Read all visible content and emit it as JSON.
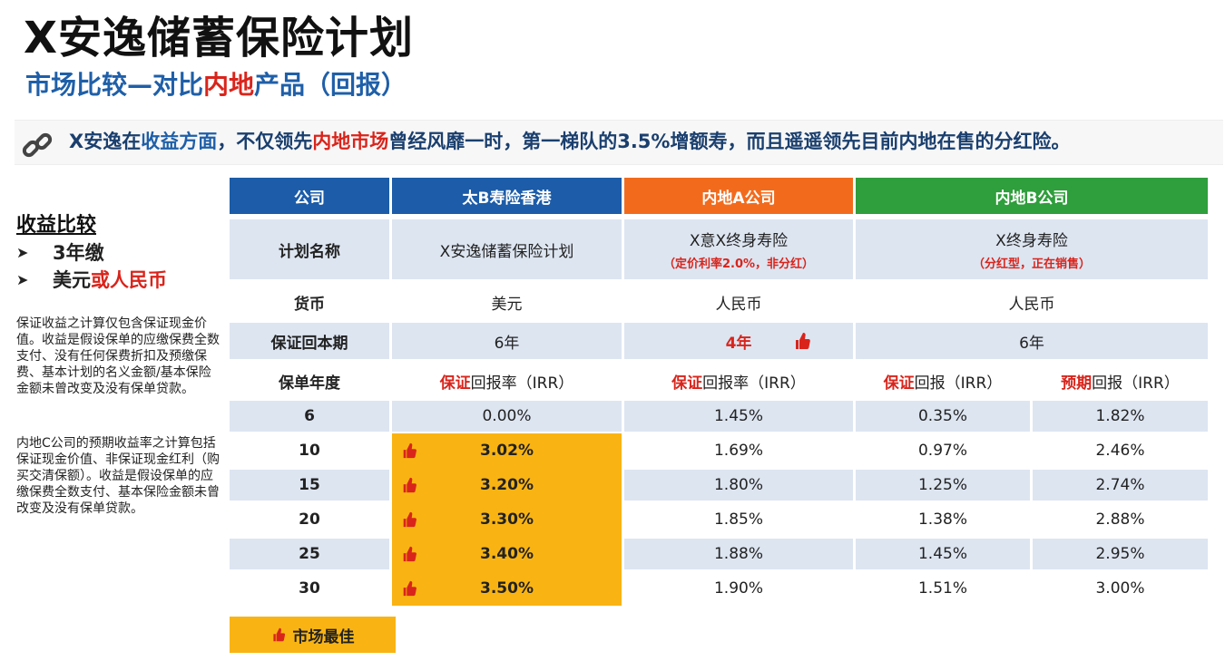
{
  "header": {
    "title": "X安逸储蓄保险计划",
    "subtitle_pre": "市场比较—对比",
    "subtitle_red": "内地",
    "subtitle_post": "产品（回报）"
  },
  "banner": {
    "t1": "X安逸在",
    "t2": "收益方面",
    "t3": "，不仅领先",
    "t4": "内地市场",
    "t5": "曾经风靡一时，第一梯队的3.5%增额寿，而且遥遥领先目前内地在售的分红险。",
    "icon": "link-chain-icon"
  },
  "sidebar": {
    "heading": "收益比较",
    "bullet1": "3年缴",
    "bullet2_pre": "美元",
    "bullet2_red": "或人民币",
    "note1": "保证收益之计算仅包含保证现金价值。收益是假设保单的应缴保费全数支付、没有任何保费折扣及预缴保费、基本计划的名义金额/基本保险金额未曾改变及没有保单贷款。",
    "note2": "内地C公司的预期收益率之计算包括保证现金价值、非保证现金红利（购买交清保额）。收益是假设保单的应缴保费全数支付、基本保险金额未曾改变及没有保单贷款。"
  },
  "table": {
    "headers": {
      "company": "公司",
      "taib": "太B寿险香港",
      "mainland_a": "内地A公司",
      "mainland_b": "内地B公司"
    },
    "colors": {
      "blue": "#1c5ca8",
      "orange": "#f26b1d",
      "green": "#2f9e3c",
      "gold": "#f9b413",
      "red": "#d9241b"
    },
    "plan": {
      "label": "计划名称",
      "taib": "X安逸储蓄保险计划",
      "a_name": "X意X终身寿险",
      "a_note": "（定价利率2.0%，非分红）",
      "b_name": "X终身寿险",
      "b_note": "（分红型，正在销售）"
    },
    "currency": {
      "label": "货币",
      "taib": "美元",
      "a": "人民币",
      "b": "人民币"
    },
    "breakeven": {
      "label": "保证回本期",
      "taib": "6年",
      "a": "4年",
      "b": "6年"
    },
    "year_hdr": {
      "label": "保单年度",
      "taib_red": "保证",
      "taib_rest": "回报率（IRR）",
      "a_red": "保证",
      "a_rest": "回报率（IRR）",
      "b1_red": "保证",
      "b1_rest": "回报（IRR）",
      "b2_red": "预期",
      "b2_rest": "回报（IRR）"
    },
    "rows": [
      {
        "year": "6",
        "taib": "0.00%",
        "a": "1.45%",
        "b_guar": "0.35%",
        "b_exp": "1.82%",
        "best": false
      },
      {
        "year": "10",
        "taib": "3.02%",
        "a": "1.69%",
        "b_guar": "0.97%",
        "b_exp": "2.46%",
        "best": true
      },
      {
        "year": "15",
        "taib": "3.20%",
        "a": "1.80%",
        "b_guar": "1.25%",
        "b_exp": "2.74%",
        "best": true
      },
      {
        "year": "20",
        "taib": "3.30%",
        "a": "1.85%",
        "b_guar": "1.38%",
        "b_exp": "2.88%",
        "best": true
      },
      {
        "year": "25",
        "taib": "3.40%",
        "a": "1.88%",
        "b_guar": "1.45%",
        "b_exp": "2.95%",
        "best": true
      },
      {
        "year": "30",
        "taib": "3.50%",
        "a": "1.90%",
        "b_guar": "1.51%",
        "b_exp": "3.00%",
        "best": true
      }
    ]
  },
  "legend": {
    "label": "市场最佳",
    "icon": "thumbs-up-icon"
  }
}
